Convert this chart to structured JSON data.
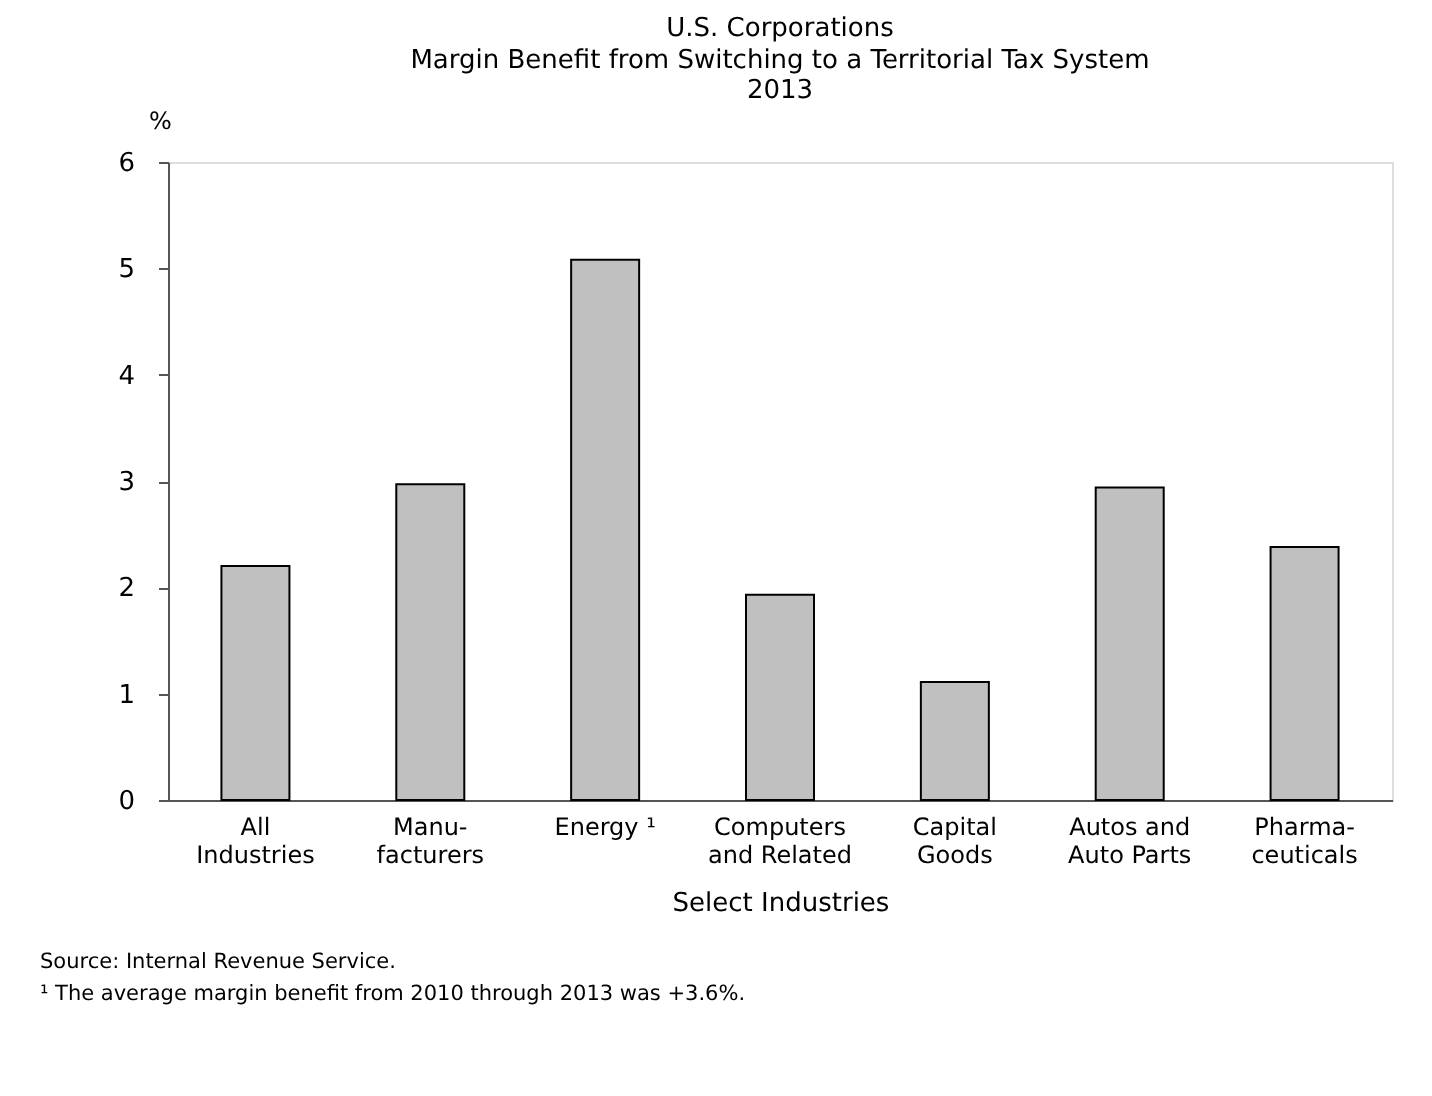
{
  "chart_data": {
    "type": "bar",
    "title": "U.S. Corporations",
    "subtitle": "Margin Benefit from Switching to a Territorial Tax System\n2013",
    "ylabel": "%",
    "xlabel": "Select Industries",
    "categories": [
      "All\nIndustries",
      "Manu-\nfacturers",
      "Energy ¹",
      "Computers\nand Related",
      "Capital\nGoods",
      "Autos and\nAuto Parts",
      "Pharma-\nceuticals"
    ],
    "values": [
      2.2,
      2.97,
      5.08,
      1.93,
      1.11,
      2.94,
      2.38
    ],
    "color": "#c0c0c0",
    "ylim": [
      0,
      6
    ],
    "yticks": [
      0,
      1,
      2,
      3,
      4,
      5,
      6
    ],
    "grid": false,
    "annotations": [
      "Source: Internal Revenue Service.",
      "¹ The average margin benefit from 2010 through 2013 was +3.6%."
    ]
  }
}
